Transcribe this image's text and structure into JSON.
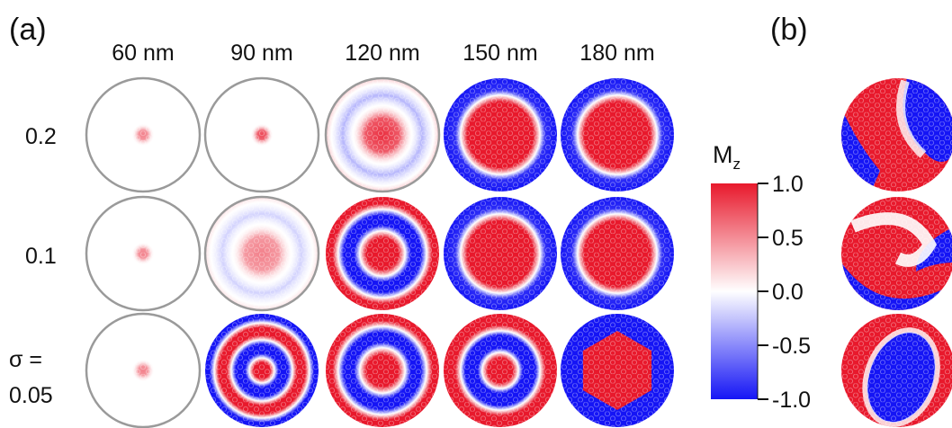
{
  "panel_a": {
    "label": "(a)",
    "column_headers": [
      "60 nm",
      "90 nm",
      "120 nm",
      "150 nm",
      "180 nm"
    ],
    "row_labels": [
      "0.2",
      "0.1"
    ],
    "row_label_sigma_prefix": "σ =",
    "row_label_sigma_value": "0.05",
    "grid": [
      [
        {
          "pattern": "dot",
          "intensity": 0.55
        },
        {
          "pattern": "dot",
          "intensity": 0.8
        },
        {
          "pattern": "faint-ring",
          "intensity": 0.9
        },
        {
          "pattern": "core",
          "intensity": 1
        },
        {
          "pattern": "core",
          "intensity": 1
        }
      ],
      [
        {
          "pattern": "dot",
          "intensity": 0.55
        },
        {
          "pattern": "faint-ring",
          "intensity": 0.55
        },
        {
          "pattern": "ring1",
          "intensity": 1
        },
        {
          "pattern": "core",
          "intensity": 1
        },
        {
          "pattern": "core",
          "intensity": 1
        }
      ],
      [
        {
          "pattern": "dot",
          "intensity": 0.55
        },
        {
          "pattern": "ring2",
          "intensity": 1
        },
        {
          "pattern": "ring1",
          "intensity": 1
        },
        {
          "pattern": "ring2b",
          "intensity": 1
        },
        {
          "pattern": "hexcore",
          "intensity": 1
        }
      ]
    ],
    "grey_outline_cells": [
      [
        0,
        0
      ],
      [
        0,
        1
      ],
      [
        0,
        2
      ],
      [
        1,
        0
      ],
      [
        1,
        1
      ],
      [
        2,
        0
      ]
    ]
  },
  "colorbar": {
    "title_main": "M",
    "title_sub": "z",
    "ticks": [
      "1.0",
      "0.5",
      "0.0",
      "-0.5",
      "-1.0"
    ],
    "tick_values": [
      1.0,
      0.5,
      0.0,
      -0.5,
      -1.0
    ],
    "range": [
      -1.0,
      1.0
    ],
    "colors": {
      "max": "#e8192c",
      "mid": "#ffffff",
      "min": "#1515f5"
    }
  },
  "panel_b": {
    "label": "(b)",
    "patterns": [
      "stripe",
      "swirl",
      "oval"
    ]
  }
}
